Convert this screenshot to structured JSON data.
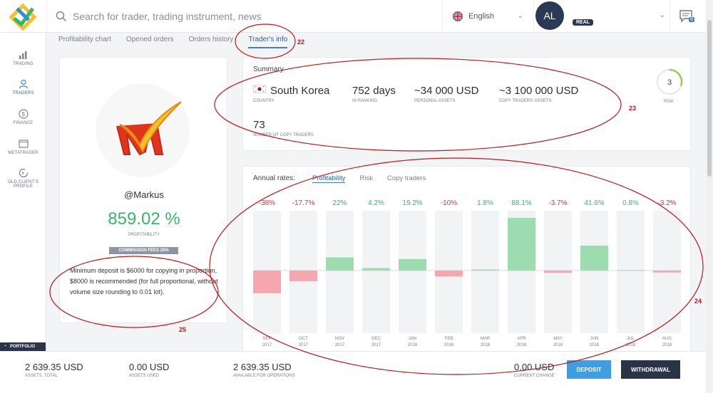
{
  "header": {
    "search_placeholder": "Search for trader, trading instrument, news",
    "language": "English",
    "avatar_initials": "AL",
    "account_badge": "REAL",
    "chat_badge": "6"
  },
  "sidebar": {
    "items": [
      {
        "label": "TRADING",
        "icon": "chart-bars-icon"
      },
      {
        "label": "TRADERS",
        "icon": "traders-icon"
      },
      {
        "label": "FINANCE",
        "icon": "dollar-icon"
      },
      {
        "label": "METATRADER",
        "icon": "monitor-icon"
      },
      {
        "label": "OLD CLIENT'S",
        "label2": "PROFILE",
        "icon": "refresh-icon"
      }
    ],
    "portfolio": "PORTFOLIO"
  },
  "tabs": [
    "Profitability chart",
    "Opened orders",
    "Orders history",
    "Trader's info"
  ],
  "trader": {
    "name": "@Markus",
    "profitability": "859.02 %",
    "profitability_label": "PROFITABILITY",
    "commission": "COMMISSION FEES 25%",
    "min_deposit": "Minimum deposit is $6000 for copying in proportion, $8000 is recommended (for full proportional, without volume size rounding to 0.01 lot)."
  },
  "summary": {
    "title": "Summary",
    "country": {
      "value": "South Korea",
      "label": "COUNTRY"
    },
    "ranking": {
      "value": "752 days",
      "label": "IN RANKING"
    },
    "personal_assets": {
      "value": "~34 000 USD",
      "label": "PERSONAL ASSETS"
    },
    "copy_assets": {
      "value": "~3 100 000 USD",
      "label": "COPY TRADERS' ASSETS"
    },
    "copy_traders": {
      "value": "73",
      "label": "NUMBER OF COPY TRADERS"
    },
    "risk": {
      "value": "3",
      "label": "RISK",
      "level": 0.3
    }
  },
  "annual": {
    "label": "Annual rates:",
    "tabs": [
      "Profitability",
      "Risk",
      "Copy traders"
    ]
  },
  "chart_data": {
    "type": "bar",
    "categories": [
      "SEP 2017",
      "OCT 2017",
      "NOV 2017",
      "DEC 2017",
      "JAN 2018",
      "FEB 2018",
      "MAR 2018",
      "APR 2018",
      "MAY 2018",
      "JUN 2018",
      "JUL 2018",
      "AUG 2018"
    ],
    "months": [
      "SEP",
      "OCT",
      "NOV",
      "DEC",
      "JAN",
      "FEB",
      "MAR",
      "APR",
      "MAY",
      "JUN",
      "JUL",
      "AUG"
    ],
    "years": [
      "2017",
      "2017",
      "2017",
      "2017",
      "2018",
      "2018",
      "2018",
      "2018",
      "2018",
      "2018",
      "2018",
      "2018"
    ],
    "values": [
      -38,
      -17.7,
      22,
      4.2,
      19.2,
      -10,
      1.8,
      88.1,
      -3.7,
      41.6,
      0.8,
      -3.2
    ],
    "labels": [
      "-38%",
      "-17.7%",
      "22%",
      "4.2%",
      "19.2%",
      "-10%",
      "1.8%",
      "88.1%",
      "-3.7%",
      "41.6%",
      "0.8%",
      "-3.2%"
    ],
    "positive_color": "#9ddbb1",
    "negative_color": "#f5a6ae",
    "positive_text": "#3db36a",
    "negative_text": "#e0353f"
  },
  "footer": {
    "assets_total": {
      "value": "2 639.35 USD",
      "label": "ASSETS, TOTAL"
    },
    "assets_used": {
      "value": "0.00 USD",
      "label": "ASSETS USED"
    },
    "available": {
      "value": "2 639.35 USD",
      "label": "AVAILABLE FOR OPERATIONS"
    },
    "current_change": {
      "value": "0.00 USD",
      "label": "CURRENT CHANGE"
    },
    "deposit": "DEPOSIT",
    "withdrawal": "WITHDRAWAL"
  },
  "annotations": [
    "22",
    "23",
    "24",
    "25"
  ]
}
